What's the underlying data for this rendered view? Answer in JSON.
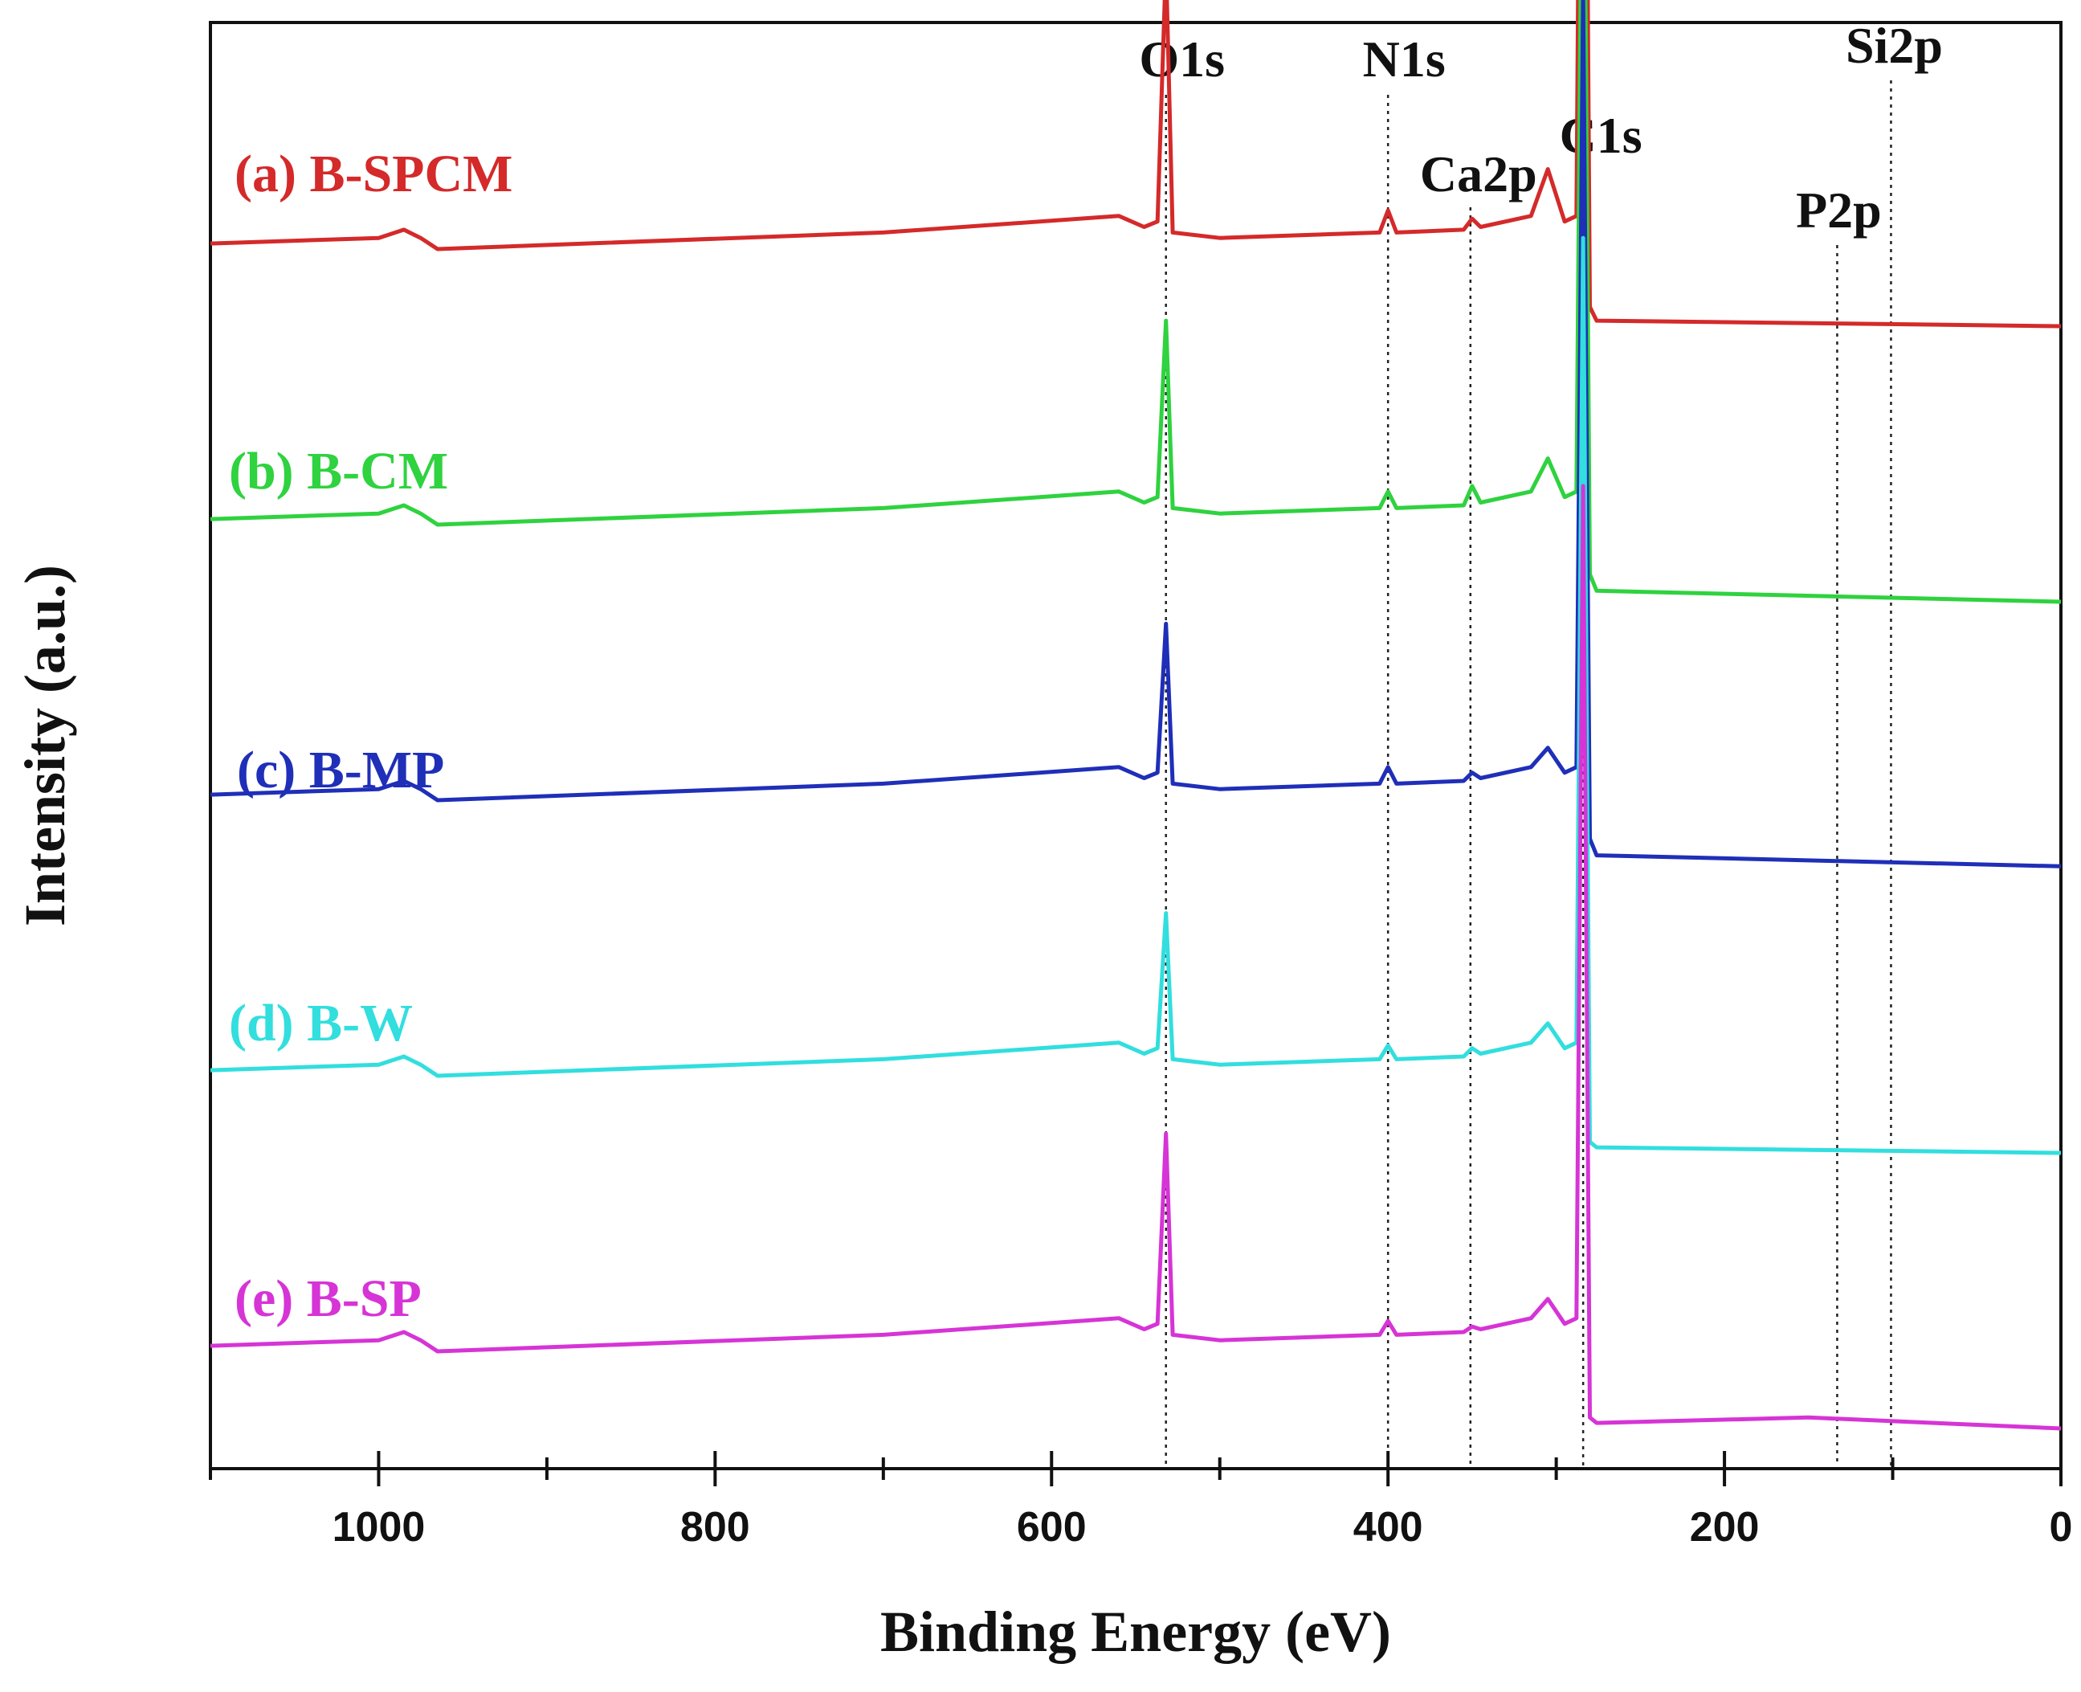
{
  "chart_data": {
    "type": "line",
    "title": "",
    "xlabel": "Binding Energy (eV)",
    "ylabel": "Intensity (a.u.)",
    "xlim": [
      1100,
      0
    ],
    "x_reversed": true,
    "x_ticks": [
      1000,
      800,
      600,
      400,
      200,
      0
    ],
    "x_tick_labels": [
      "1000",
      "800",
      "600",
      "400",
      "200",
      "0"
    ],
    "y_ticks_shown": false,
    "grid": false,
    "legend": "inline labels at left above each curve",
    "peak_markers": [
      {
        "label": "O1s",
        "x": 532
      },
      {
        "label": "N1s",
        "x": 400
      },
      {
        "label": "Ca2p",
        "x": 351
      },
      {
        "label": "C1s",
        "x": 284
      },
      {
        "label": "P2p",
        "x": 133
      },
      {
        "label": "Si2p",
        "x": 101
      }
    ],
    "series": [
      {
        "name": "(a) B-SPCM",
        "color": "#d42a2a",
        "offset": 4.0,
        "points": [
          [
            1100,
            0.88
          ],
          [
            1000,
            0.9
          ],
          [
            985,
            0.93
          ],
          [
            975,
            0.9
          ],
          [
            965,
            0.86
          ],
          [
            700,
            0.92
          ],
          [
            560,
            0.98
          ],
          [
            545,
            0.94
          ],
          [
            537,
            0.96
          ],
          [
            532,
            1.9
          ],
          [
            528,
            0.92
          ],
          [
            500,
            0.9
          ],
          [
            405,
            0.92
          ],
          [
            400,
            1.0
          ],
          [
            395,
            0.92
          ],
          [
            355,
            0.93
          ],
          [
            350,
            0.97
          ],
          [
            345,
            0.94
          ],
          [
            315,
            0.98
          ],
          [
            305,
            1.15
          ],
          [
            295,
            0.96
          ],
          [
            288,
            0.98
          ],
          [
            284,
            4.3
          ],
          [
            280,
            0.65
          ],
          [
            276,
            0.6
          ],
          [
            0,
            0.58
          ]
        ]
      },
      {
        "name": "(b) B-CM",
        "color": "#2fd23f",
        "offset": 3.0,
        "points": [
          [
            1100,
            0.88
          ],
          [
            1000,
            0.9
          ],
          [
            985,
            0.93
          ],
          [
            975,
            0.9
          ],
          [
            965,
            0.86
          ],
          [
            700,
            0.92
          ],
          [
            560,
            0.98
          ],
          [
            545,
            0.94
          ],
          [
            537,
            0.96
          ],
          [
            532,
            1.6
          ],
          [
            528,
            0.92
          ],
          [
            500,
            0.9
          ],
          [
            405,
            0.92
          ],
          [
            400,
            0.98
          ],
          [
            395,
            0.92
          ],
          [
            355,
            0.93
          ],
          [
            350,
            1.0
          ],
          [
            345,
            0.94
          ],
          [
            315,
            0.98
          ],
          [
            305,
            1.1
          ],
          [
            295,
            0.96
          ],
          [
            288,
            0.98
          ],
          [
            284,
            3.9
          ],
          [
            280,
            0.68
          ],
          [
            276,
            0.62
          ],
          [
            0,
            0.58
          ]
        ]
      },
      {
        "name": "(c) B-MP",
        "color": "#1f2fb8",
        "offset": 2.0,
        "points": [
          [
            1100,
            0.88
          ],
          [
            1000,
            0.9
          ],
          [
            985,
            0.93
          ],
          [
            975,
            0.9
          ],
          [
            965,
            0.86
          ],
          [
            700,
            0.92
          ],
          [
            560,
            0.98
          ],
          [
            545,
            0.94
          ],
          [
            537,
            0.96
          ],
          [
            532,
            1.5
          ],
          [
            528,
            0.92
          ],
          [
            500,
            0.9
          ],
          [
            405,
            0.92
          ],
          [
            400,
            0.98
          ],
          [
            395,
            0.92
          ],
          [
            355,
            0.93
          ],
          [
            350,
            0.96
          ],
          [
            345,
            0.94
          ],
          [
            315,
            0.98
          ],
          [
            305,
            1.05
          ],
          [
            295,
            0.96
          ],
          [
            288,
            0.98
          ],
          [
            284,
            3.8
          ],
          [
            280,
            0.72
          ],
          [
            276,
            0.66
          ],
          [
            0,
            0.62
          ]
        ]
      },
      {
        "name": "(d) B-W",
        "color": "#32dede",
        "offset": 1.0,
        "points": [
          [
            1100,
            0.88
          ],
          [
            1000,
            0.9
          ],
          [
            985,
            0.93
          ],
          [
            975,
            0.9
          ],
          [
            965,
            0.86
          ],
          [
            700,
            0.92
          ],
          [
            560,
            0.98
          ],
          [
            545,
            0.94
          ],
          [
            537,
            0.96
          ],
          [
            532,
            1.45
          ],
          [
            528,
            0.92
          ],
          [
            500,
            0.9
          ],
          [
            405,
            0.92
          ],
          [
            400,
            0.97
          ],
          [
            395,
            0.92
          ],
          [
            355,
            0.93
          ],
          [
            350,
            0.96
          ],
          [
            345,
            0.94
          ],
          [
            315,
            0.98
          ],
          [
            305,
            1.05
          ],
          [
            295,
            0.96
          ],
          [
            288,
            0.98
          ],
          [
            284,
            3.9
          ],
          [
            280,
            0.62
          ],
          [
            276,
            0.6
          ],
          [
            0,
            0.58
          ]
        ]
      },
      {
        "name": "(e) B-SP",
        "color": "#d634d6",
        "offset": 0.0,
        "points": [
          [
            1100,
            0.88
          ],
          [
            1000,
            0.9
          ],
          [
            985,
            0.93
          ],
          [
            975,
            0.9
          ],
          [
            965,
            0.86
          ],
          [
            700,
            0.92
          ],
          [
            560,
            0.98
          ],
          [
            545,
            0.94
          ],
          [
            537,
            0.96
          ],
          [
            532,
            1.65
          ],
          [
            528,
            0.92
          ],
          [
            500,
            0.9
          ],
          [
            405,
            0.92
          ],
          [
            400,
            0.97
          ],
          [
            395,
            0.92
          ],
          [
            355,
            0.93
          ],
          [
            350,
            0.95
          ],
          [
            345,
            0.94
          ],
          [
            315,
            0.98
          ],
          [
            305,
            1.05
          ],
          [
            295,
            0.96
          ],
          [
            288,
            0.98
          ],
          [
            284,
            4.0
          ],
          [
            280,
            0.62
          ],
          [
            276,
            0.6
          ],
          [
            150,
            0.62
          ],
          [
            0,
            0.58
          ]
        ]
      }
    ]
  }
}
